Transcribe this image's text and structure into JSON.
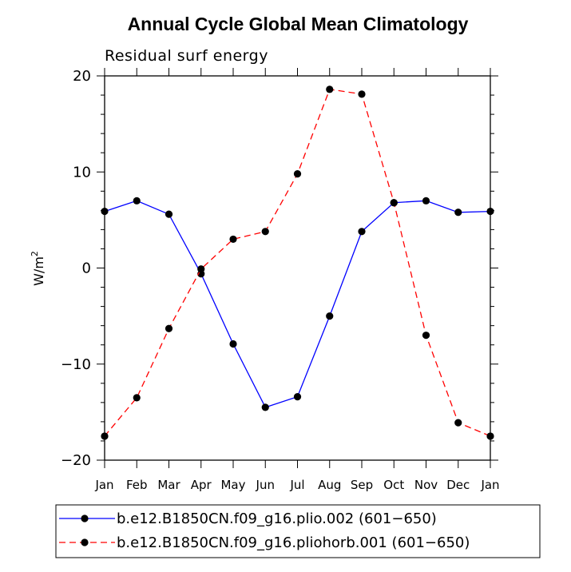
{
  "chart_data": {
    "type": "line",
    "title": "Annual Cycle Global Mean Climatology",
    "subtitle": "Residual surf energy",
    "xlabel": "",
    "ylabel": "W/m",
    "ylabel_superscript": "2",
    "ylim": [
      -20,
      20
    ],
    "yticks": [
      -20,
      -10,
      0,
      10,
      20
    ],
    "ytick_labels": [
      "−20",
      "−10",
      "0",
      "10",
      "20"
    ],
    "categories": [
      "Jan",
      "Feb",
      "Mar",
      "Apr",
      "May",
      "Jun",
      "Jul",
      "Aug",
      "Sep",
      "Oct",
      "Nov",
      "Dec",
      "Jan"
    ],
    "series": [
      {
        "name": "b.e12.B1850CN.f09_g16.plio.002 (601−650)",
        "color": "#0000ff",
        "dash": "solid",
        "values": [
          5.9,
          7.0,
          5.6,
          -0.6,
          -7.9,
          -14.5,
          -13.4,
          -5.0,
          3.8,
          6.8,
          7.0,
          5.8,
          5.9
        ]
      },
      {
        "name": "b.e12.B1850CN.f09_g16.pliohorb.001 (601−650)",
        "color": "#ff0000",
        "dash": "dashed",
        "values": [
          -17.5,
          -13.5,
          -6.3,
          -0.1,
          3.0,
          3.8,
          9.8,
          18.6,
          18.1,
          6.8,
          -7.0,
          -16.1,
          -17.5
        ]
      }
    ],
    "legend_position": "bottom-left"
  }
}
